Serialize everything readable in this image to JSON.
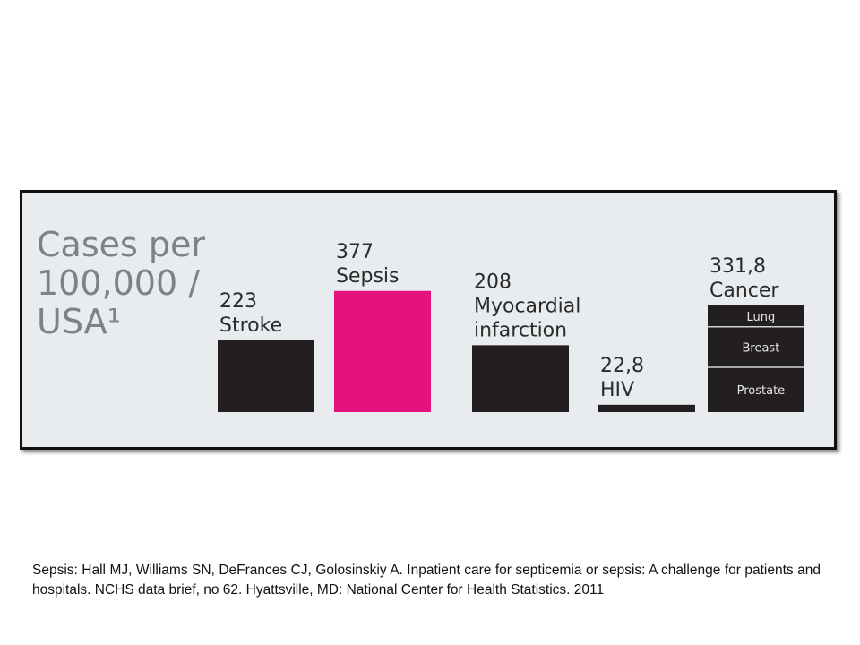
{
  "chart_data": {
    "type": "bar",
    "title_lines": [
      "Cases per",
      "100,000 /",
      "USA¹"
    ],
    "categories": [
      "Stroke",
      "Sepsis",
      "Myocardial infarction",
      "HIV",
      "Cancer"
    ],
    "category_lines": [
      [
        "Stroke"
      ],
      [
        "Sepsis"
      ],
      [
        "Myocardial",
        "infarction"
      ],
      [
        "HIV"
      ],
      [
        "Cancer"
      ]
    ],
    "value_labels": [
      "223",
      "377",
      "208",
      "22,8",
      "331,8"
    ],
    "values": [
      223,
      377,
      208,
      22.8,
      331.8
    ],
    "colors": [
      "#231f20",
      "#e6117d",
      "#231f20",
      "#231f20",
      "#231f20"
    ],
    "cancer_breakdown": {
      "segments": [
        "Lung",
        "Breast",
        "Prostate"
      ],
      "fractions": [
        0.2,
        0.38,
        0.42
      ]
    },
    "background_color": "#e8ecef",
    "grid": false
  },
  "citation": "Sepsis: Hall MJ, Williams SN, DeFrances CJ, Golosinskiy A. Inpatient care for septicemia or sepsis: A challenge for patients and hospitals. NCHS data brief, no 62. Hyattsville, MD: National Center for Health Statistics. 2011"
}
